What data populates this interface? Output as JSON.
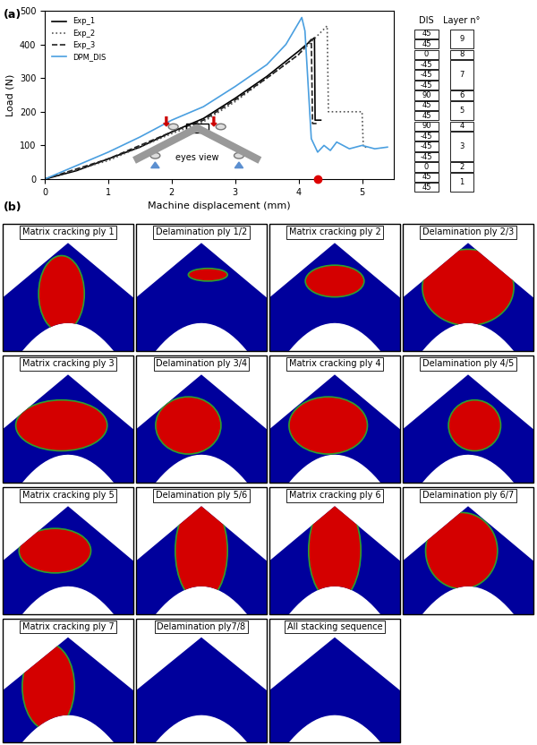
{
  "chart_data": {
    "type": "line",
    "panel_label": "(a)",
    "xlabel": "Machine displacement (mm)",
    "ylabel": "Load (N)",
    "xlim": [
      0,
      5.5
    ],
    "xticks": [
      0,
      1,
      2,
      3,
      4,
      5
    ],
    "ylim": [
      0,
      500
    ],
    "yticks": [
      0,
      100,
      200,
      300,
      400,
      500
    ],
    "legend": "upper left",
    "series": [
      {
        "name": "Exp_1",
        "color": "#000000",
        "line_style": "solid",
        "x": [
          0,
          0.5,
          1,
          1.5,
          2,
          2.5,
          3,
          3.5,
          4,
          4.25,
          4.26,
          4.35
        ],
        "values": [
          0,
          25,
          60,
          95,
          140,
          180,
          240,
          305,
          380,
          420,
          175,
          175
        ]
      },
      {
        "name": "Exp_2",
        "color": "#555555",
        "line_style": "dotted",
        "x": [
          0,
          1,
          2,
          2.5,
          3,
          3.5,
          4,
          4.45,
          4.47,
          5.0,
          5.02,
          5.1
        ],
        "values": [
          0,
          55,
          135,
          170,
          230,
          300,
          370,
          455,
          200,
          200,
          95,
          95
        ]
      },
      {
        "name": "Exp_3",
        "color": "#222222",
        "line_style": "dashed",
        "x": [
          0,
          1,
          2,
          2.5,
          3,
          3.5,
          4,
          4.2,
          4.22,
          4.3
        ],
        "values": [
          0,
          60,
          140,
          175,
          235,
          300,
          370,
          415,
          165,
          165
        ]
      },
      {
        "name": "DPM_DIS",
        "color": "#4a9fe0",
        "line_style": "solid",
        "x": [
          0,
          0.5,
          1,
          1.5,
          2,
          2.5,
          3,
          3.5,
          3.8,
          4.05,
          4.1,
          4.2,
          4.3,
          4.4,
          4.5,
          4.6,
          4.8,
          5.0,
          5.2,
          5.4
        ],
        "values": [
          0,
          40,
          80,
          125,
          175,
          215,
          275,
          340,
          400,
          480,
          440,
          120,
          80,
          100,
          85,
          110,
          90,
          100,
          90,
          95
        ]
      }
    ],
    "failure_point": {
      "x": 4.3,
      "y": 0,
      "color": "#dd0000",
      "marker": "o"
    },
    "inset_label": "eyes view"
  },
  "stacking_table": {
    "headers": [
      "DIS",
      "Layer n°"
    ],
    "layers": [
      {
        "layer": 9,
        "dis": [
          45,
          45
        ]
      },
      {
        "layer": 8,
        "dis": [
          0
        ]
      },
      {
        "layer": 7,
        "dis": [
          -45,
          -45,
          -45
        ]
      },
      {
        "layer": 6,
        "dis": [
          90
        ]
      },
      {
        "layer": 5,
        "dis": [
          45,
          45
        ]
      },
      {
        "layer": 4,
        "dis": [
          90
        ]
      },
      {
        "layer": 3,
        "dis": [
          -45,
          -45,
          -45
        ]
      },
      {
        "layer": 2,
        "dis": [
          0
        ]
      },
      {
        "layer": 1,
        "dis": [
          45,
          45
        ]
      }
    ]
  },
  "damage_maps": {
    "panel_label": "(b)",
    "panels": [
      "Matrix cracking ply 1",
      "Delamination ply 1/2",
      "Matrix cracking ply 2",
      "Delamination ply 2/3",
      "Matrix cracking ply 3",
      "Delamination ply 3/4",
      "Matrix cracking ply 4",
      "Delamination ply 4/5",
      "Matrix cracking ply 5",
      "Delamination ply 5/6",
      "Matrix cracking ply 6",
      "Delamination ply 6/7",
      "Matrix cracking ply 7",
      "Delamination ply7/8",
      "All stacking sequence"
    ]
  }
}
